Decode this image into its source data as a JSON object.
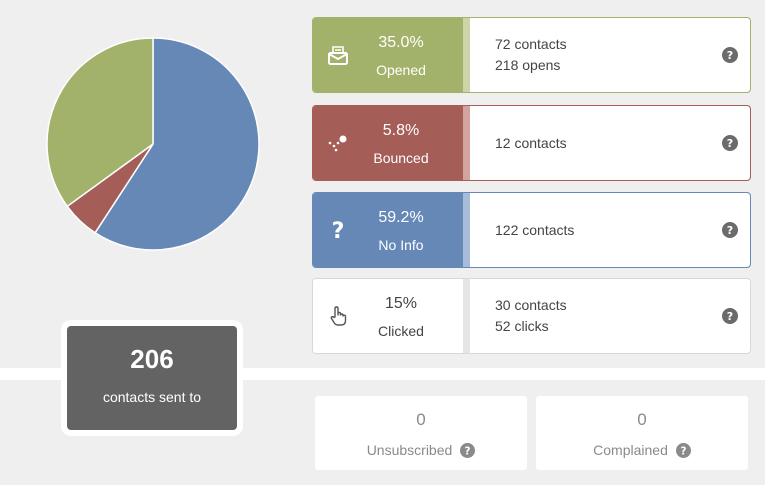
{
  "chart_data": {
    "type": "pie",
    "slices": [
      {
        "label": "Opened",
        "value": 35.0,
        "color": "#a3b26a"
      },
      {
        "label": "Bounced",
        "value": 5.8,
        "color": "#a55d57"
      },
      {
        "label": "No Info",
        "value": 59.2,
        "color": "#6588b7"
      }
    ]
  },
  "sent": {
    "count": "206",
    "label": "contacts sent to"
  },
  "stats": {
    "opened": {
      "pct": "35.0%",
      "label": "Opened",
      "line1": "72 contacts",
      "line2": "218 opens",
      "color": "#a3b26a",
      "strip": "#cdd4a9"
    },
    "bounced": {
      "pct": "5.8%",
      "label": "Bounced",
      "line1": "12 contacts",
      "line2": "",
      "color": "#a55d57",
      "strip": "#d4a39f"
    },
    "noinfo": {
      "pct": "59.2%",
      "label": "No Info",
      "line1": "122 contacts",
      "line2": "",
      "color": "#6588b7",
      "strip": "#a7bcd8"
    },
    "clicked": {
      "pct": "15%",
      "label": "Clicked",
      "line1": "30 contacts",
      "line2": "52 clicks",
      "color": "#ffffff",
      "strip": "#e6e6e6"
    }
  },
  "bottom": {
    "unsubscribed": {
      "count": "0",
      "label": "Unsubscribed"
    },
    "complained": {
      "count": "0",
      "label": "Complained"
    }
  },
  "icons": {
    "opened": "open-envelope-icon",
    "bounced": "bounce-icon",
    "noinfo": "question-mark-icon",
    "clicked": "pointer-hand-icon",
    "help": "help-circle-icon"
  }
}
